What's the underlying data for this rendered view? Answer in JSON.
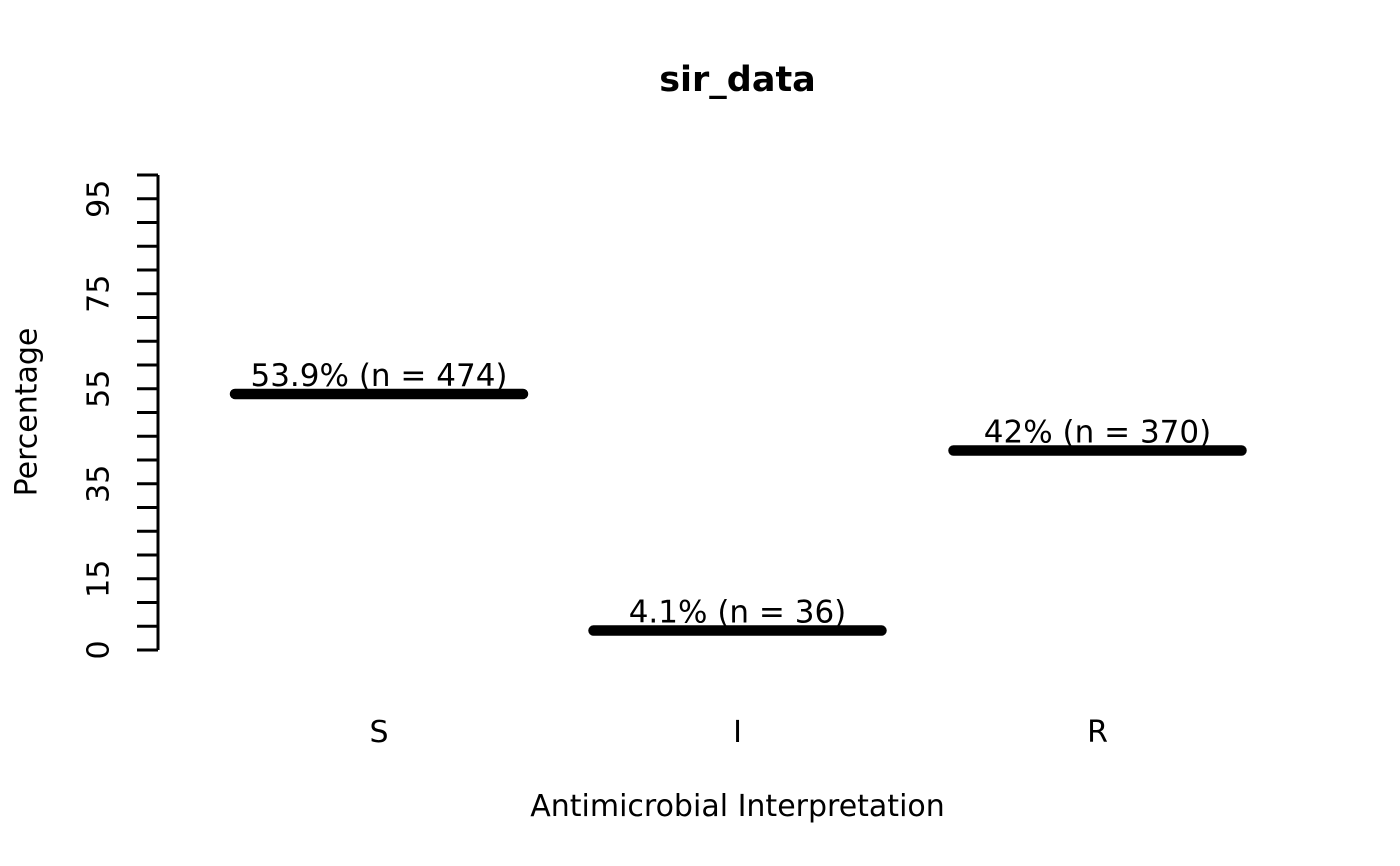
{
  "figure": {
    "title": "sir_data",
    "x_axis_title": "Antimicrobial Interpretation",
    "y_axis_title": "Percentage"
  },
  "chart_data": {
    "type": "bar",
    "style": "horizontal-segment-markers",
    "title": "sir_data",
    "xlabel": "Antimicrobial Interpretation",
    "ylabel": "Percentage",
    "categories": [
      "S",
      "I",
      "R"
    ],
    "values": [
      53.9,
      4.1,
      42
    ],
    "counts": [
      474,
      36,
      370
    ],
    "point_labels": [
      "53.9% (n = 474)",
      "4.1% (n = 36)",
      "42% (n = 370)"
    ],
    "ylim": [
      0,
      100
    ],
    "y_tick_interval": 5,
    "y_labeled_ticks": [
      0,
      15,
      35,
      55,
      75,
      95
    ],
    "grid": false,
    "legend": "none",
    "colors": {
      "bar": "#000000",
      "text": "#000000",
      "background": "#ffffff"
    }
  }
}
